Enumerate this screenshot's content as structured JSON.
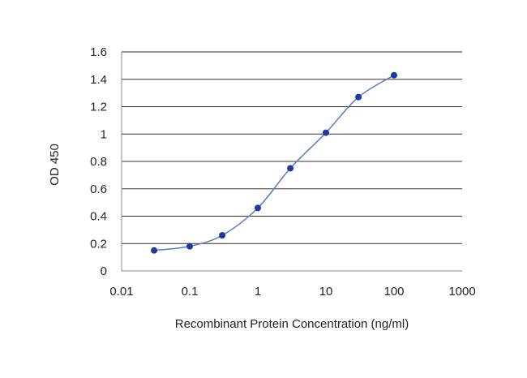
{
  "chart_data": {
    "type": "line",
    "title": "",
    "xlabel": "Recombinant Protein Concentration (ng/ml)",
    "ylabel": "OD 450",
    "xscale": "log",
    "xlim": [
      0.01,
      1000
    ],
    "ylim": [
      0,
      1.6
    ],
    "xticks": [
      0.01,
      0.1,
      1,
      10,
      100,
      1000
    ],
    "xtick_labels": [
      "0.01",
      "0.1",
      "1",
      "10",
      "100",
      "1000"
    ],
    "yticks": [
      0,
      0.2,
      0.4,
      0.6,
      0.8,
      1,
      1.2,
      1.4,
      1.6
    ],
    "ytick_labels": [
      "0",
      "0.2",
      "0.4",
      "0.6",
      "0.8",
      "1",
      "1.2",
      "1.4",
      "1.6"
    ],
    "grid": "horizontal",
    "legend": "none",
    "series": [
      {
        "x": [
          0.03,
          0.1,
          0.3,
          1,
          3,
          10,
          30,
          100
        ],
        "y": [
          0.15,
          0.18,
          0.26,
          0.46,
          0.75,
          1.01,
          1.27,
          1.43
        ]
      }
    ],
    "colors": {
      "line": "#5a78c8",
      "marker": "#1f3a9a",
      "grid": "#333333"
    }
  }
}
